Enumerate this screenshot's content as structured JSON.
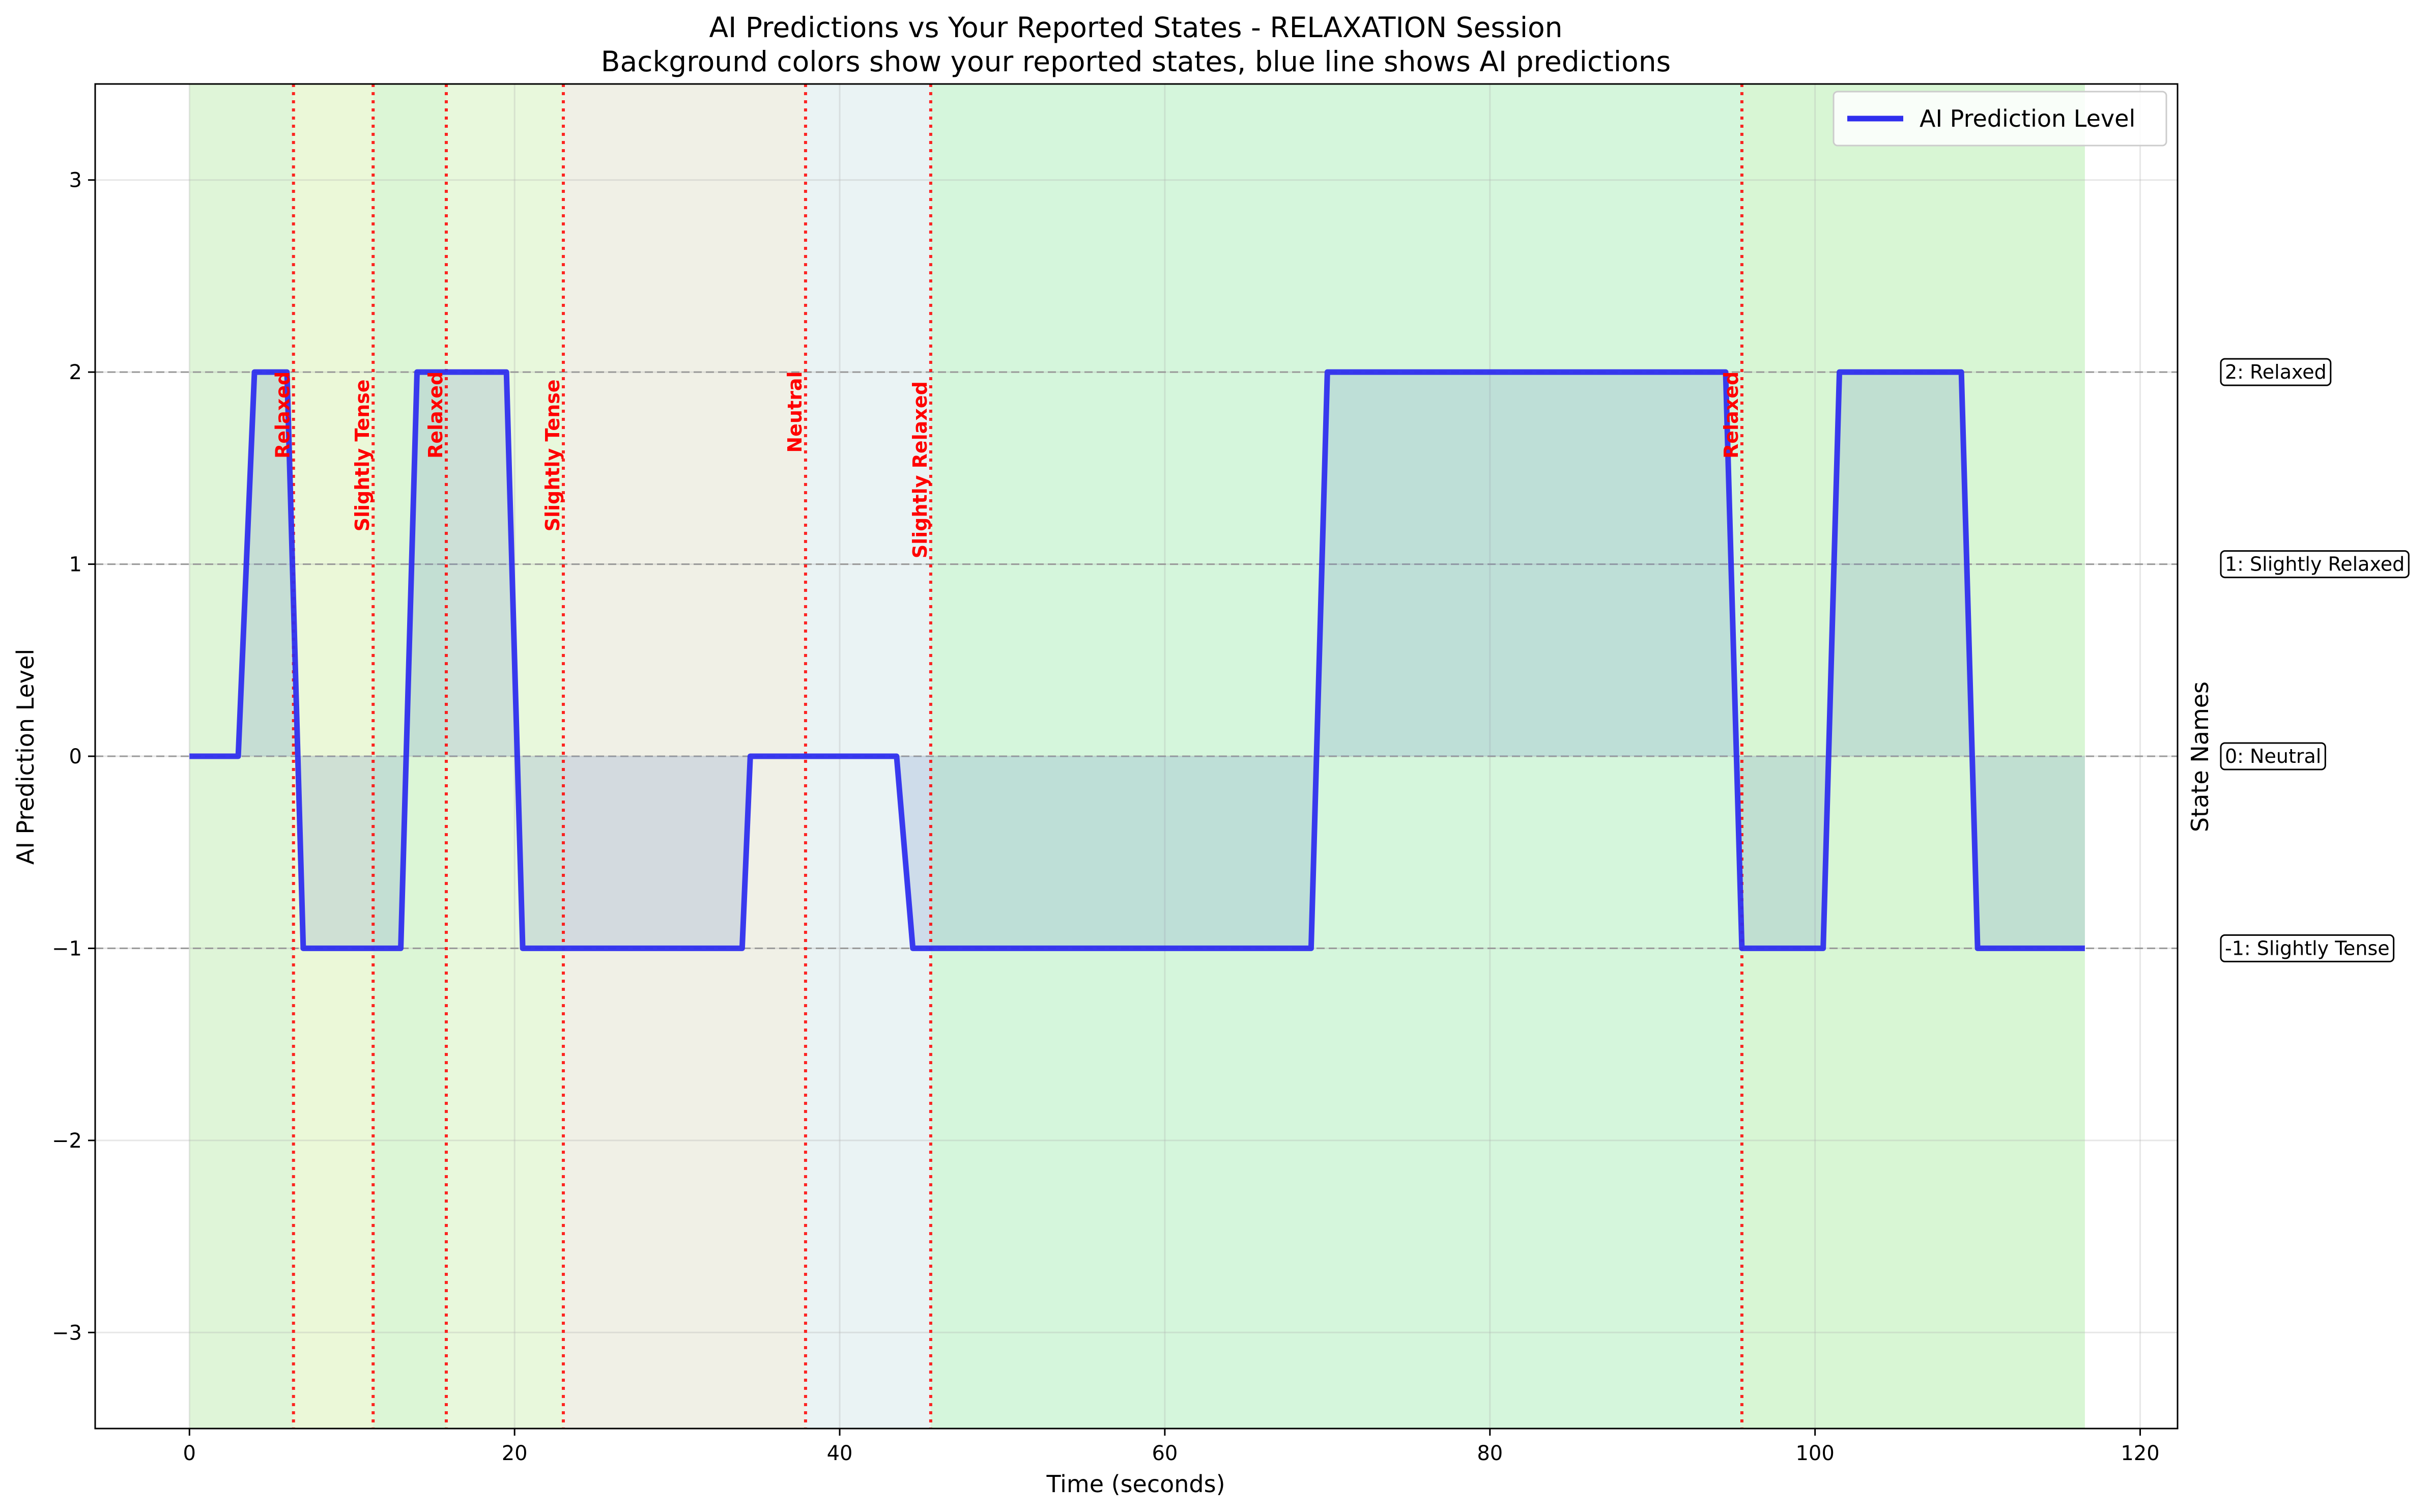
{
  "chart_data": {
    "type": "line",
    "title": "AI Predictions vs Your Reported States - RELAXATION Session",
    "subtitle": "Background colors show your reported states, blue line shows AI predictions",
    "xlabel": "Time (seconds)",
    "ylabel": "AI Prediction Level",
    "right_label": "State Names",
    "xlim": [
      -5.8,
      122.3
    ],
    "ylim": [
      -3.5,
      3.5
    ],
    "x_ticks": [
      0,
      20,
      40,
      60,
      80,
      100,
      120
    ],
    "x_tick_labels": [
      "0",
      "20",
      "40",
      "60",
      "80",
      "100",
      "120"
    ],
    "y_ticks": [
      3,
      2,
      1,
      0,
      -1,
      -2,
      -3
    ],
    "y_tick_labels": [
      "3",
      "2",
      "1",
      "0",
      "−1",
      "−2",
      "−3"
    ],
    "grid": true,
    "legend": {
      "position": "top-right",
      "entries": [
        "AI Prediction Level"
      ]
    },
    "line_color": "#2f2fee",
    "fill_color": "#6f8fc8",
    "annotation_color": "#ff0000",
    "series": [
      {
        "name": "AI Prediction Level",
        "x": [
          0,
          3,
          4,
          6,
          7,
          13,
          14,
          19.5,
          20.5,
          34,
          34.5,
          43.5,
          44.5,
          69,
          70,
          94.5,
          95.5,
          100.5,
          101.5,
          109,
          110,
          116.6
        ],
        "y": [
          0,
          0,
          2,
          2,
          -1,
          -1,
          2,
          2,
          -1,
          -1,
          0,
          0,
          -1,
          -1,
          2,
          2,
          -1,
          -1,
          2,
          2,
          -1,
          -1
        ]
      }
    ],
    "state_regions": [
      {
        "start": 0,
        "end": 6.4,
        "color": "#dff5d8"
      },
      {
        "start": 6.4,
        "end": 11.3,
        "color": "#ebf8d8"
      },
      {
        "start": 11.3,
        "end": 15.8,
        "color": "#dcf6d6"
      },
      {
        "start": 15.8,
        "end": 23,
        "color": "#e8f8dc"
      },
      {
        "start": 23,
        "end": 37.9,
        "color": "#f0f0e6"
      },
      {
        "start": 37.9,
        "end": 45.6,
        "color": "#eaf3f4"
      },
      {
        "start": 45.6,
        "end": 95.5,
        "color": "#d5f6dc"
      },
      {
        "start": 95.5,
        "end": 116.6,
        "color": "#d8f6d4"
      }
    ],
    "state_changes": [
      {
        "x": 6.4,
        "label": "Relaxed",
        "y_bottom": 1.55
      },
      {
        "x": 11.3,
        "label": "Slightly Tense",
        "y_bottom": 1.17
      },
      {
        "x": 15.8,
        "label": "Relaxed",
        "y_bottom": 1.55
      },
      {
        "x": 23,
        "label": "Slightly Tense",
        "y_bottom": 1.17
      },
      {
        "x": 37.9,
        "label": "Neutral",
        "y_bottom": 1.58
      },
      {
        "x": 45.6,
        "label": "Slightly Relaxed",
        "y_bottom": 1.03
      },
      {
        "x": 95.5,
        "label": "Relaxed",
        "y_bottom": 1.55
      }
    ],
    "state_levels": [
      {
        "y": 2,
        "label": "2: Relaxed"
      },
      {
        "y": 1,
        "label": "1: Slightly Relaxed"
      },
      {
        "y": 0,
        "label": "0: Neutral"
      },
      {
        "y": -1,
        "label": "-1: Slightly Tense"
      }
    ]
  }
}
